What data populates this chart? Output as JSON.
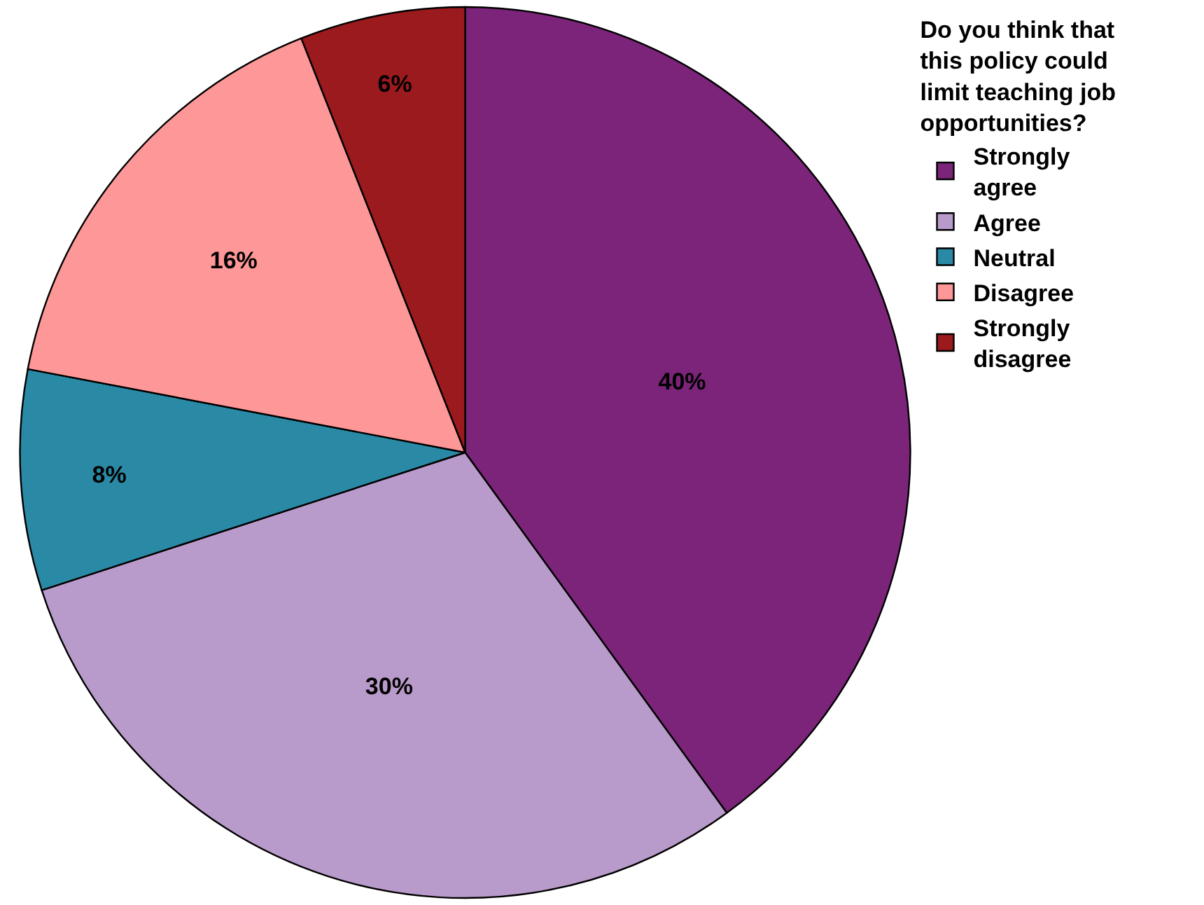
{
  "chart_data": {
    "type": "pie",
    "legend_title": "Do you think that this policy could limit teaching job opportunities?",
    "categories": [
      "Strongly agree",
      "Agree",
      "Neutral",
      "Disagree",
      "Strongly disagree"
    ],
    "values": [
      40,
      30,
      8,
      16,
      6
    ],
    "colors": [
      "#7b2479",
      "#b89bca",
      "#2a8aa6",
      "#fe9797",
      "#9b1a1d"
    ],
    "value_labels": [
      "40%",
      "30%",
      "8%",
      "16%",
      "6%"
    ],
    "legend": "right"
  }
}
